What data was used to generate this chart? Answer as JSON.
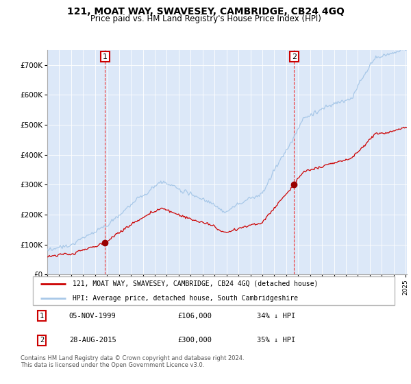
{
  "title": "121, MOAT WAY, SWAVESEY, CAMBRIDGE, CB24 4GQ",
  "subtitle": "Price paid vs. HM Land Registry's House Price Index (HPI)",
  "legend_line1": "121, MOAT WAY, SWAVESEY, CAMBRIDGE, CB24 4GQ (detached house)",
  "legend_line2": "HPI: Average price, detached house, South Cambridgeshire",
  "transaction1_date": "05-NOV-1999",
  "transaction1_price": "£106,000",
  "transaction1_hpi": "34% ↓ HPI",
  "transaction1_x": 1999.84,
  "transaction2_date": "28-AUG-2015",
  "transaction2_price": "£300,000",
  "transaction2_hpi": "35% ↓ HPI",
  "transaction2_x": 2015.66,
  "footer": "Contains HM Land Registry data © Crown copyright and database right 2024.\nThis data is licensed under the Open Government Licence v3.0.",
  "hpi_color": "#a8c8e8",
  "price_color": "#cc0000",
  "dot_color": "#990000",
  "vline_color": "#ee3333",
  "bg_color": "#dce8f8",
  "grid_color": "#ffffff",
  "ylim_max": 750000,
  "ylabel_ticks": [
    0,
    100000,
    200000,
    300000,
    400000,
    500000,
    600000,
    700000
  ],
  "ylabel_labels": [
    "£0",
    "£100K",
    "£200K",
    "£300K",
    "£400K",
    "£500K",
    "£600K",
    "£700K"
  ],
  "xstart": 1995,
  "xend": 2025.1
}
